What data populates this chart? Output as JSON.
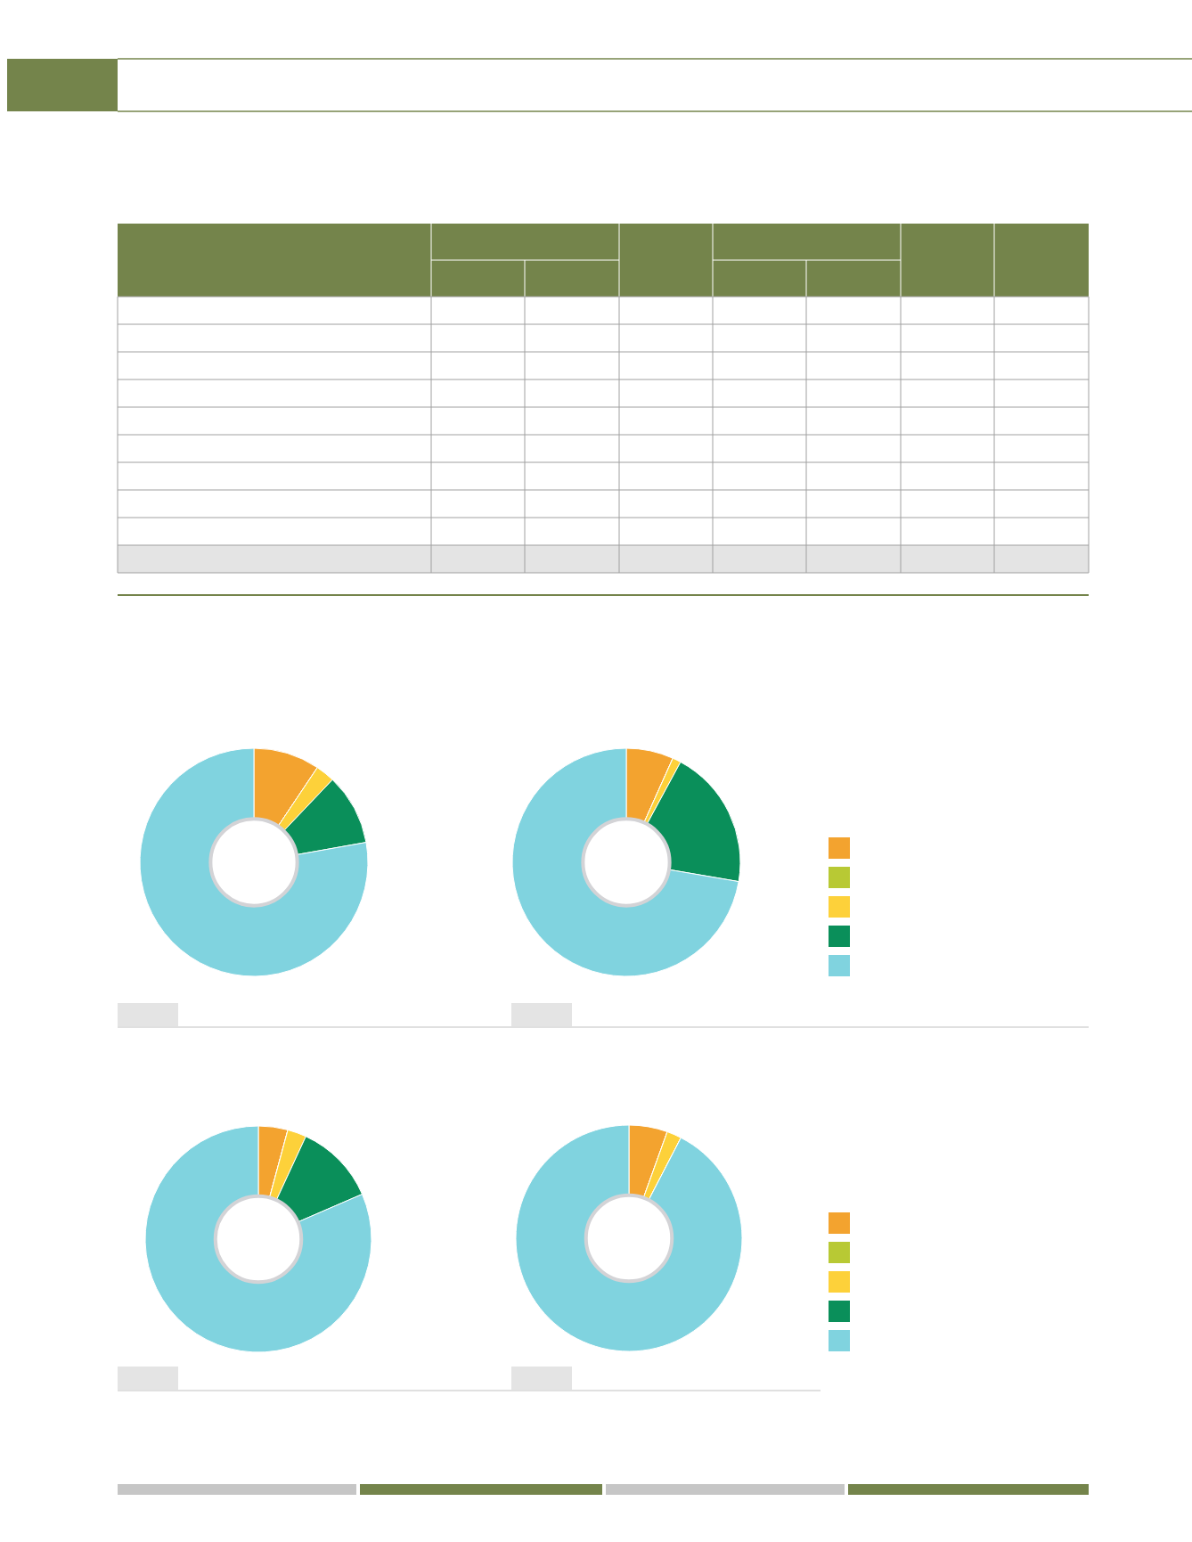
{
  "chart_data": [
    {
      "type": "donut",
      "categories": [
        null,
        null,
        null,
        null,
        null
      ],
      "values": [
        9.4,
        0,
        2.7,
        10.1,
        77.8
      ],
      "colors": [
        "#f3a32f",
        "#b8c934",
        "#fdd13a",
        "#0a8f5a",
        "#80d3df"
      ]
    },
    {
      "type": "donut",
      "categories": [
        null,
        null,
        null,
        null,
        null
      ],
      "values": [
        6.7,
        0,
        1.2,
        19.8,
        72.3
      ],
      "colors": [
        "#f3a32f",
        "#b8c934",
        "#fdd13a",
        "#0a8f5a",
        "#80d3df"
      ]
    },
    {
      "type": "donut",
      "categories": [
        null,
        null,
        null,
        null,
        null
      ],
      "values": [
        4.2,
        0,
        2.7,
        11.6,
        81.5
      ],
      "colors": [
        "#f3a32f",
        "#b8c934",
        "#fdd13a",
        "#0a8f5a",
        "#80d3df"
      ]
    },
    {
      "type": "donut",
      "categories": [
        null,
        null,
        null,
        null,
        null
      ],
      "values": [
        5.5,
        0,
        2.1,
        0,
        92.4
      ],
      "colors": [
        "#f3a32f",
        "#b8c934",
        "#fdd13a",
        "#0a8f5a",
        "#80d3df"
      ]
    }
  ]
}
